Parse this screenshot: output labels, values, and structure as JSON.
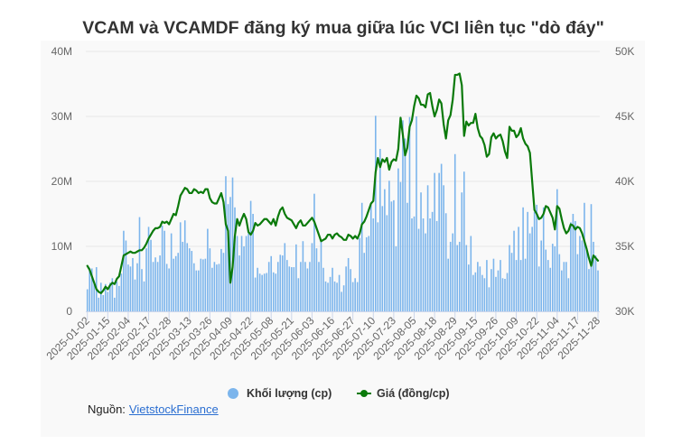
{
  "title": "VCAM và VCAMDF đăng ký mua giữa lúc VCI liên tục \"dò đáy\"",
  "legend": {
    "volume_label": "Khối lượng (cp)",
    "price_label": "Giá (đồng/cp)"
  },
  "source": {
    "prefix": "Nguồn:",
    "link_text": "VietstockFinance"
  },
  "colors": {
    "volume": "#7cb5ec",
    "price": "#0b7a0b",
    "grid": "#e6e6e6",
    "panel_background": "#f9f9f9",
    "link": "#2a6ed1"
  },
  "chart_data": {
    "type": "bar",
    "title": "VCAM và VCAMDF đăng ký mua giữa lúc VCI liên tục \"dò đáy\"",
    "xlabel": "",
    "ylabel": "",
    "grid": true,
    "legend_position": "bottom",
    "x_tick_labels": [
      "2025-01-02",
      "2025-01-15",
      "2025-02-04",
      "2025-02-17",
      "2025-02-28",
      "2025-03-13",
      "2025-03-26",
      "2025-04-09",
      "2025-04-22",
      "2025-05-08",
      "2025-05-21",
      "2025-06-03",
      "2025-06-16",
      "2025-06-27",
      "2025-07-10",
      "2025-07-23",
      "2025-08-05",
      "2025-08-18",
      "2025-08-29",
      "2025-09-15",
      "2025-09-26",
      "2025-10-09",
      "2025-10-22",
      "2025-11-04",
      "2025-11-17",
      "2025-11-28"
    ],
    "x_tick_interval": 9,
    "n_points": 226,
    "y_left": {
      "tick_labels": [
        "0",
        "10M",
        "20M",
        "30M",
        "40M"
      ],
      "range": [
        0,
        40
      ]
    },
    "y_right": {
      "tick_labels": [
        "30K",
        "35K",
        "40K",
        "45K",
        "50K"
      ],
      "range": [
        30,
        50
      ]
    },
    "series": [
      {
        "name": "Khối lượng (cp)",
        "type": "bar",
        "axis": "left",
        "scale": "M",
        "values": [
          3.4,
          6.7,
          6.6,
          4.6,
          6.8,
          2.1,
          4.4,
          2.5,
          4.2,
          3.0,
          4.4,
          5.1,
          2.1,
          4.6,
          3.9,
          5.8,
          12.4,
          10.9,
          7.2,
          6.9,
          8.2,
          4.9,
          7.4,
          14.5,
          6.5,
          4.6,
          9.7,
          13.0,
          11.0,
          7.6,
          8.3,
          7.6,
          8.6,
          13.2,
          12.4,
          7.3,
          6.6,
          12.0,
          8.1,
          8.5,
          9.0,
          13.7,
          10.7,
          14.0,
          10.5,
          9.7,
          9.3,
          7.4,
          6.3,
          6.3,
          8.1,
          8.0,
          8.1,
          12.7,
          9.7,
          6.7,
          7.6,
          7.2,
          7.3,
          9.6,
          9.0,
          20.8,
          16.5,
          17.6,
          20.6,
          16.0,
          11.6,
          8.6,
          11.6,
          10.0,
          11.6,
          12.0,
          17.0,
          15.0,
          5.2,
          6.7,
          5.8,
          5.6,
          5.8,
          5.9,
          7.6,
          8.5,
          6.0,
          5.8,
          7.6,
          8.7,
          8.6,
          10.5,
          7.9,
          6.9,
          6.8,
          6.8,
          10.3,
          5.1,
          7.6,
          10.8,
          7.6,
          6.6,
          7.6,
          10.5,
          18.1,
          9.7,
          7.6,
          10.9,
          6.7,
          4.6,
          4.4,
          5.3,
          6.7,
          4.6,
          4.4,
          5.6,
          3.0,
          4.0,
          6.9,
          8.2,
          6.5,
          4.5,
          5.1,
          4.5,
          11.3,
          16.7,
          9.0,
          11.4,
          11.6,
          16.4,
          14.3,
          30.1,
          13.7,
          25.0,
          16.2,
          18.8,
          14.8,
          20.1,
          16.9,
          17.1,
          10.0,
          22.0,
          19.9,
          29.4,
          26.6,
          16.7,
          29.9,
          14.3,
          14.6,
          30.0,
          12.7,
          18.3,
          14.3,
          12.0,
          19.4,
          14.3,
          15.3,
          21.3,
          13.9,
          21.3,
          22.7,
          19.4,
          15.1,
          8.1,
          10.7,
          12.0,
          24.2,
          10.2,
          10.7,
          18.3,
          21.5,
          10.2,
          7.2,
          11.6,
          5.6,
          6.0,
          7.6,
          6.9,
          5.6,
          5.1,
          7.9,
          3.7,
          6.5,
          8.1,
          5.3,
          6.3,
          7.9,
          5.1,
          5.0,
          5.9,
          10.2,
          9.0,
          12.4,
          7.9,
          13.0,
          7.9,
          16.0,
          8.1,
          15.3,
          12.0,
          13.0,
          15.3,
          16.4,
          6.9,
          10.9,
          16.0,
          9.5,
          7.9,
          6.7,
          10.4,
          10.0,
          18.8,
          8.8,
          6.3,
          7.6,
          7.6,
          5.1,
          13.7,
          15.0,
          13.9,
          8.8,
          11.6,
          10.9,
          16.7,
          9.7,
          6.5,
          16.5,
          10.7,
          8.6,
          6.3
        ]
      },
      {
        "name": "Giá (đồng/cp)",
        "type": "line",
        "axis": "right",
        "scale": "K",
        "values": [
          33.5,
          33.2,
          32.7,
          32.2,
          31.7,
          31.5,
          31.4,
          31.6,
          31.9,
          31.7,
          32.0,
          32.2,
          32.1,
          32.5,
          32.7,
          33.5,
          34.3,
          34.4,
          34.5,
          34.6,
          34.5,
          34.5,
          34.6,
          34.7,
          34.7,
          34.9,
          35.2,
          35.6,
          35.9,
          36.2,
          36.4,
          36.4,
          36.5,
          36.9,
          36.8,
          36.9,
          36.7,
          37.1,
          37.5,
          37.4,
          38.1,
          38.9,
          39.2,
          39.5,
          39.4,
          39.1,
          39.1,
          39.4,
          39.3,
          39.1,
          39.2,
          39.1,
          39.4,
          39.4,
          38.7,
          38.4,
          38.3,
          38.3,
          38.7,
          39.1,
          38.4,
          36.7,
          36.2,
          32.2,
          33.4,
          35.8,
          37.1,
          36.6,
          37.1,
          37.5,
          37.1,
          36.1,
          35.9,
          36.2,
          36.8,
          36.6,
          36.7,
          36.9,
          37.1,
          37.1,
          36.9,
          36.7,
          37.1,
          36.6,
          37.3,
          37.8,
          38.0,
          37.5,
          37.2,
          37.1,
          37.0,
          36.7,
          36.4,
          36.8,
          37.0,
          36.6,
          36.6,
          36.8,
          37.0,
          37.2,
          36.9,
          36.4,
          35.9,
          35.4,
          35.5,
          35.6,
          35.9,
          35.9,
          35.6,
          35.9,
          36.0,
          35.8,
          35.7,
          35.5,
          35.5,
          35.9,
          35.8,
          35.6,
          35.8,
          35.6,
          36.0,
          36.7,
          36.9,
          37.3,
          37.8,
          38.3,
          38.5,
          40.7,
          41.8,
          41.1,
          41.7,
          41.5,
          41.8,
          40.9,
          41.5,
          41.7,
          41.6,
          42.5,
          44.9,
          43.6,
          42.0,
          42.6,
          44.2,
          44.7,
          45.8,
          46.6,
          46.4,
          45.9,
          45.9,
          45.7,
          46.7,
          46.8,
          45.8,
          45.0,
          45.5,
          46.3,
          46.0,
          44.4,
          43.3,
          44.7,
          45.1,
          46.3,
          48.2,
          48.2,
          48.3,
          47.4,
          43.5,
          44.6,
          44.3,
          44.5,
          44.5,
          45.2,
          44.1,
          43.5,
          43.3,
          42.8,
          41.9,
          42.1,
          43.4,
          43.7,
          43.3,
          43.5,
          43.6,
          43.1,
          42.3,
          41.8,
          44.2,
          43.9,
          43.9,
          43.4,
          43.6,
          44.1,
          43.3,
          42.9,
          42.7,
          42.2,
          40.0,
          37.8,
          37.5,
          37.1,
          37.2,
          37.5,
          38.1,
          38.0,
          37.6,
          37.2,
          36.3,
          38.1,
          37.9,
          37.1,
          36.4,
          36.0,
          36.2,
          36.7,
          36.6,
          36.3,
          36.5,
          36.4,
          36.0,
          35.4,
          34.8,
          34.1,
          33.5,
          34.3,
          34.1,
          33.9
        ]
      }
    ]
  }
}
